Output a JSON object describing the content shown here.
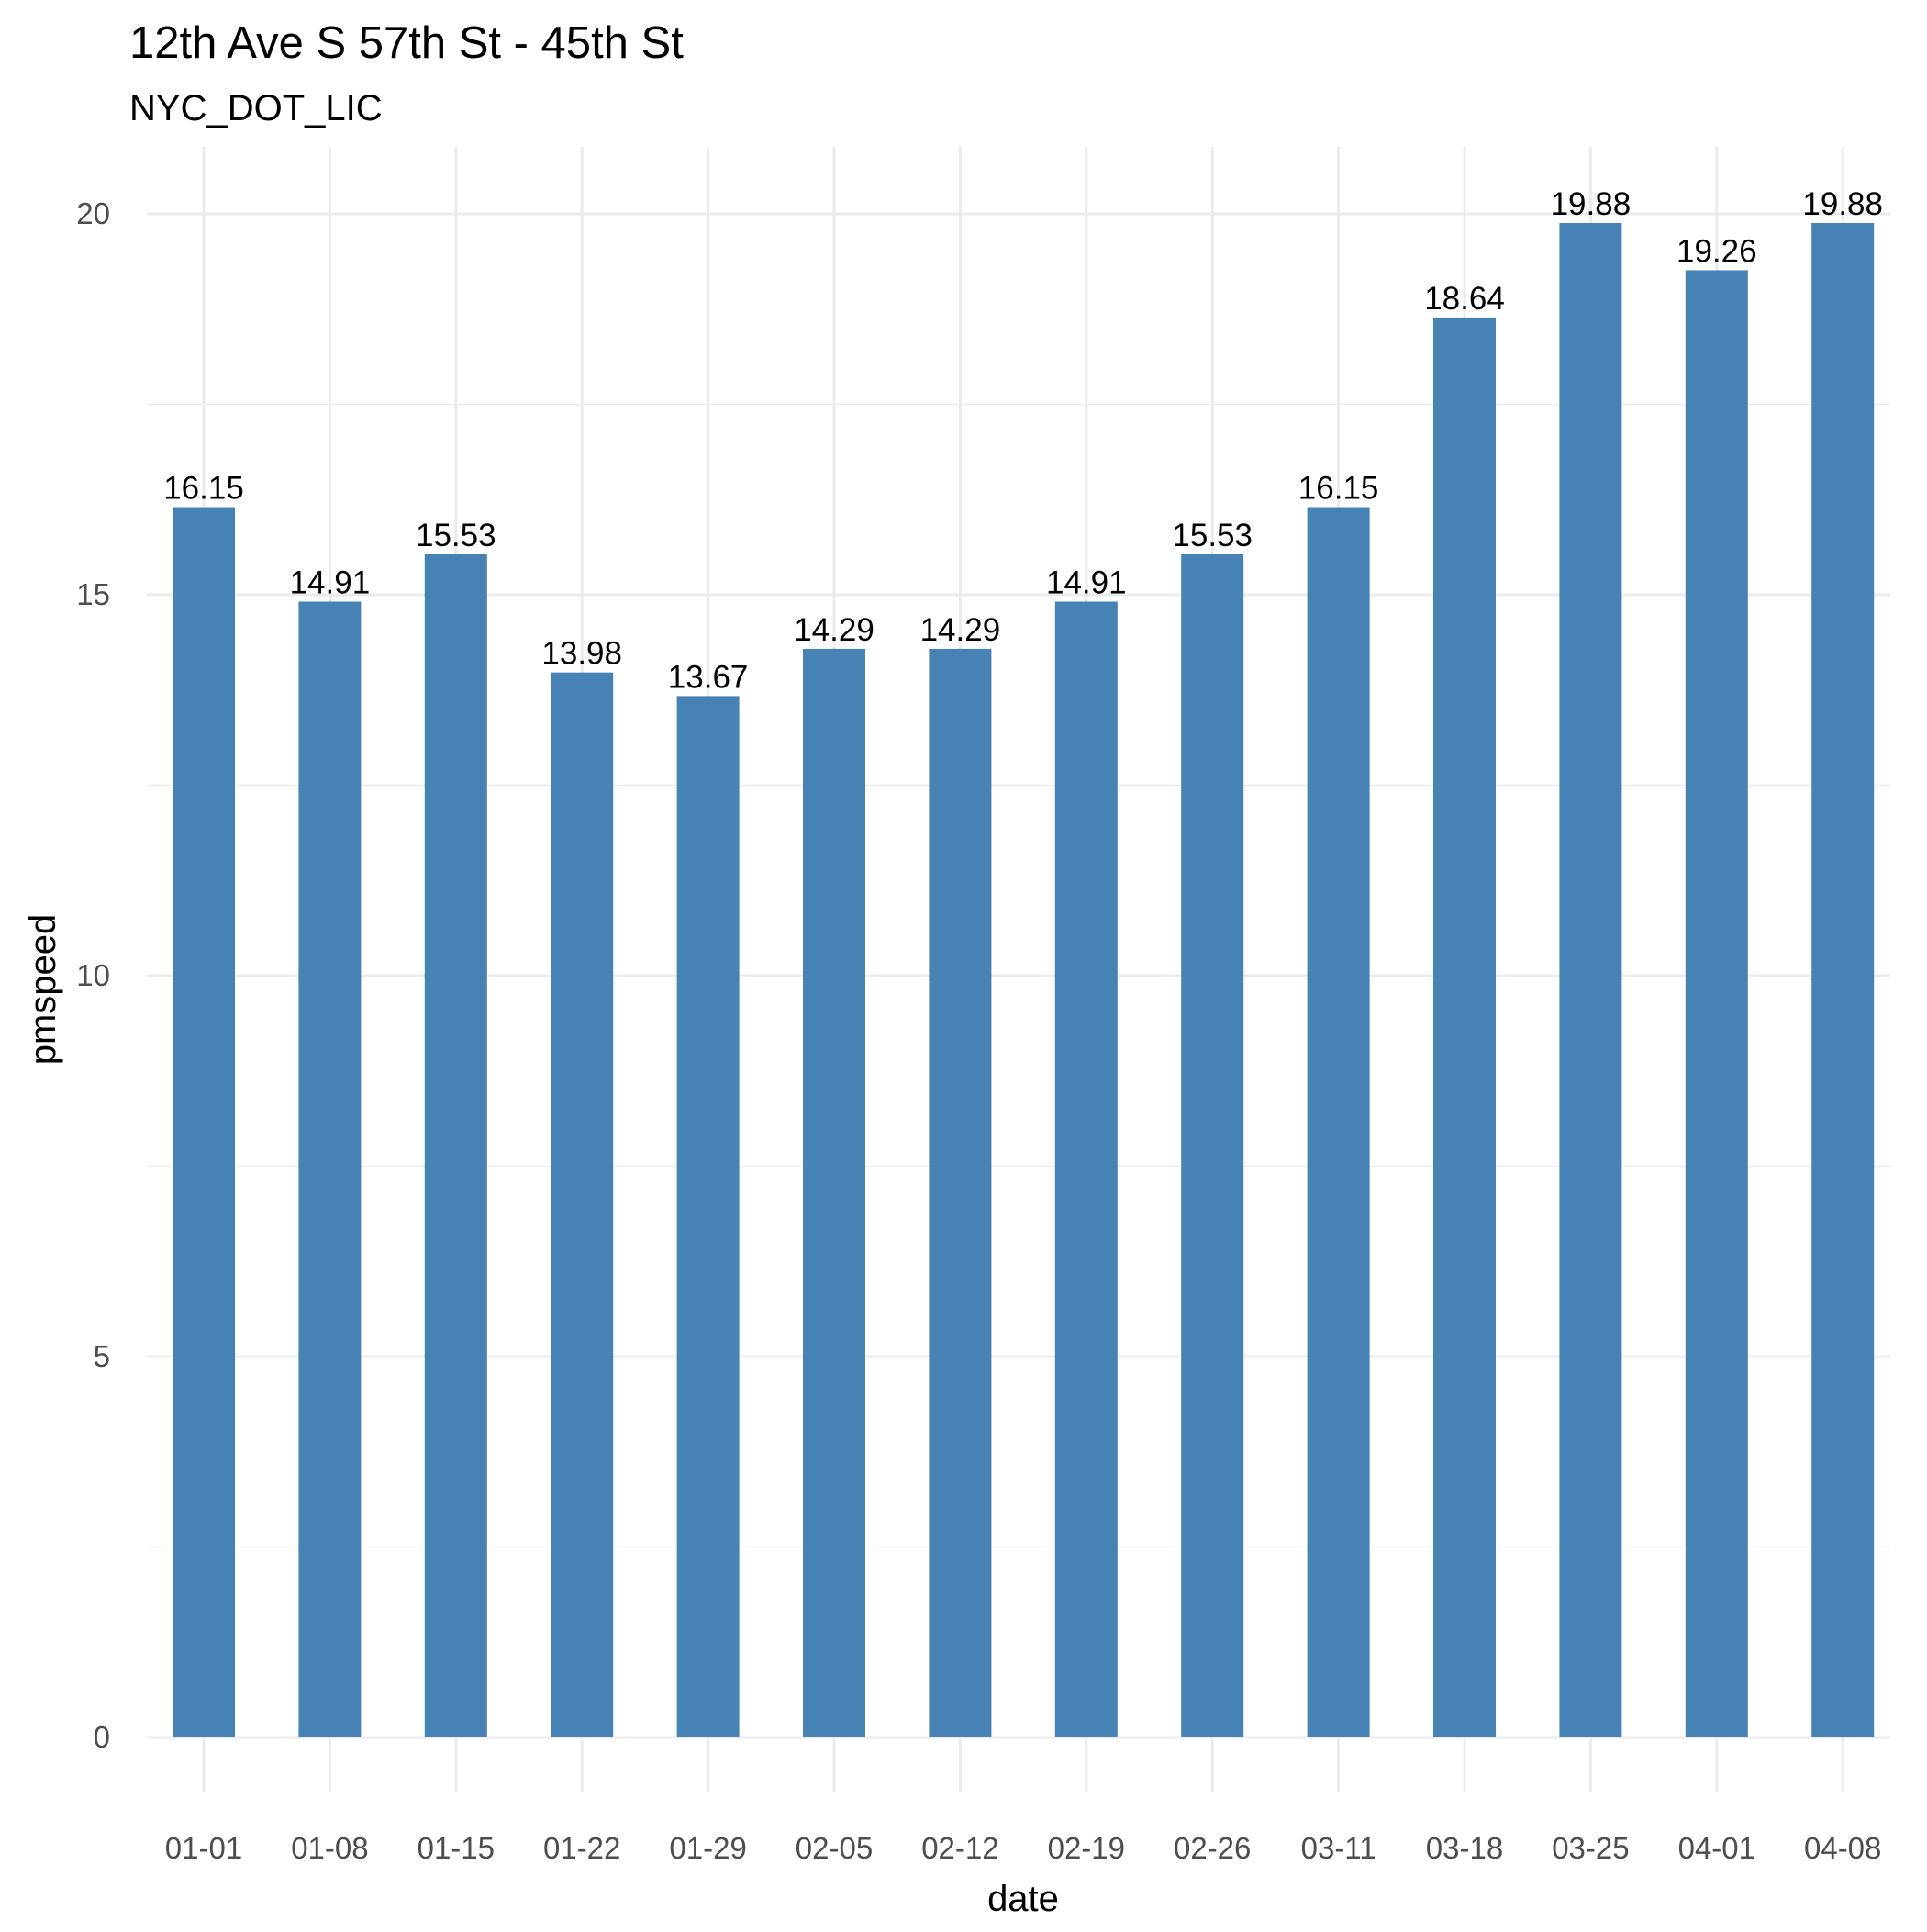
{
  "colors": {
    "bar": "#4682b4",
    "grid": "#ebebeb",
    "tick_text": "#4d4d4d",
    "text": "#000000",
    "background": "#ffffff"
  },
  "chart_data": {
    "type": "bar",
    "title": "12th Ave S 57th St - 45th St",
    "subtitle": "NYC_DOT_LIC",
    "xlabel": "date",
    "ylabel": "pmspeed",
    "categories": [
      "01-01",
      "01-08",
      "01-15",
      "01-22",
      "01-29",
      "02-05",
      "02-12",
      "02-19",
      "02-26",
      "03-11",
      "03-18",
      "03-25",
      "04-01",
      "04-08"
    ],
    "values": [
      16.15,
      14.91,
      15.53,
      13.98,
      13.67,
      14.29,
      14.29,
      14.91,
      15.53,
      16.15,
      18.64,
      19.88,
      19.26,
      19.88
    ],
    "data_labels": [
      "16.15",
      "14.91",
      "15.53",
      "13.98",
      "13.67",
      "14.29",
      "14.29",
      "14.91",
      "15.53",
      "16.15",
      "18.64",
      "19.88",
      "19.26",
      "19.88"
    ],
    "ylim": [
      0,
      21
    ],
    "y_ticks": [
      "0",
      "5",
      "10",
      "15",
      "20"
    ],
    "y_tick_values": [
      0,
      5,
      10,
      15,
      20
    ],
    "y_minor_ticks": [
      2.5,
      7.5,
      12.5,
      17.5
    ],
    "grid": true,
    "legend": "none"
  }
}
